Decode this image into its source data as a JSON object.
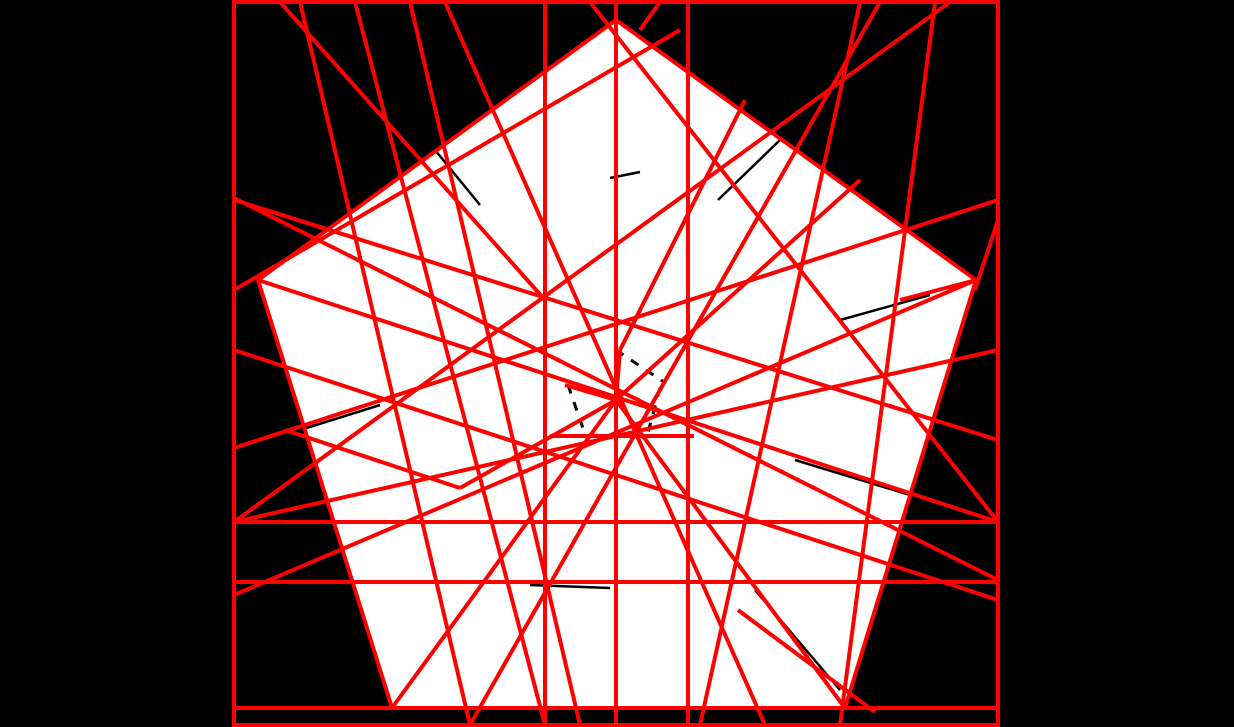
{
  "colors": {
    "background": "#000000",
    "pentagon_fill": "#ffffff",
    "crease_red": "#ff0000",
    "crease_black": "#000000"
  },
  "diagram": {
    "kind": "origami-crease-pattern",
    "shape": "regular-pentagon",
    "frame": "square",
    "text_labels": []
  }
}
